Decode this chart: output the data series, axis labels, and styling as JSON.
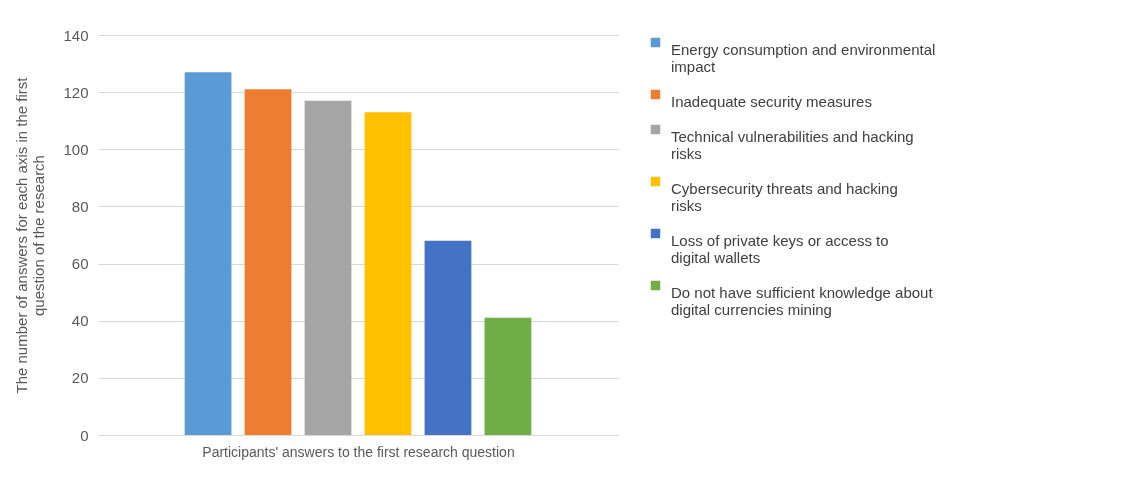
{
  "chart_data": {
    "type": "bar",
    "xlabel": "Participants' answers to the first research question",
    "ylabel": "The number of answers for each axis in the first question of the research",
    "categories": [
      null
    ],
    "series": [
      {
        "name": "Energy consumption and environmental impact",
        "color": "#5b9bd5",
        "values": [
          127
        ]
      },
      {
        "name": "Inadequate security measures",
        "color": "#ed7d31",
        "values": [
          121
        ]
      },
      {
        "name": "Technical vulnerabilities and hacking risks",
        "color": "#a5a5a5",
        "values": [
          117
        ]
      },
      {
        "name": "Cybersecurity threats and hacking risks",
        "color": "#ffc000",
        "values": [
          113
        ]
      },
      {
        "name": "Loss of private keys or access to digital wallets",
        "color": "#4472c4",
        "values": [
          68
        ]
      },
      {
        "name": "Do not have sufficient knowledge about digital currencies mining",
        "color": "#70ad47",
        "values": [
          41
        ]
      }
    ],
    "ylim": [
      0,
      140
    ],
    "yticks": [
      0,
      20,
      40,
      60,
      80,
      100,
      120,
      140
    ],
    "grid": "y",
    "legend": "right"
  }
}
